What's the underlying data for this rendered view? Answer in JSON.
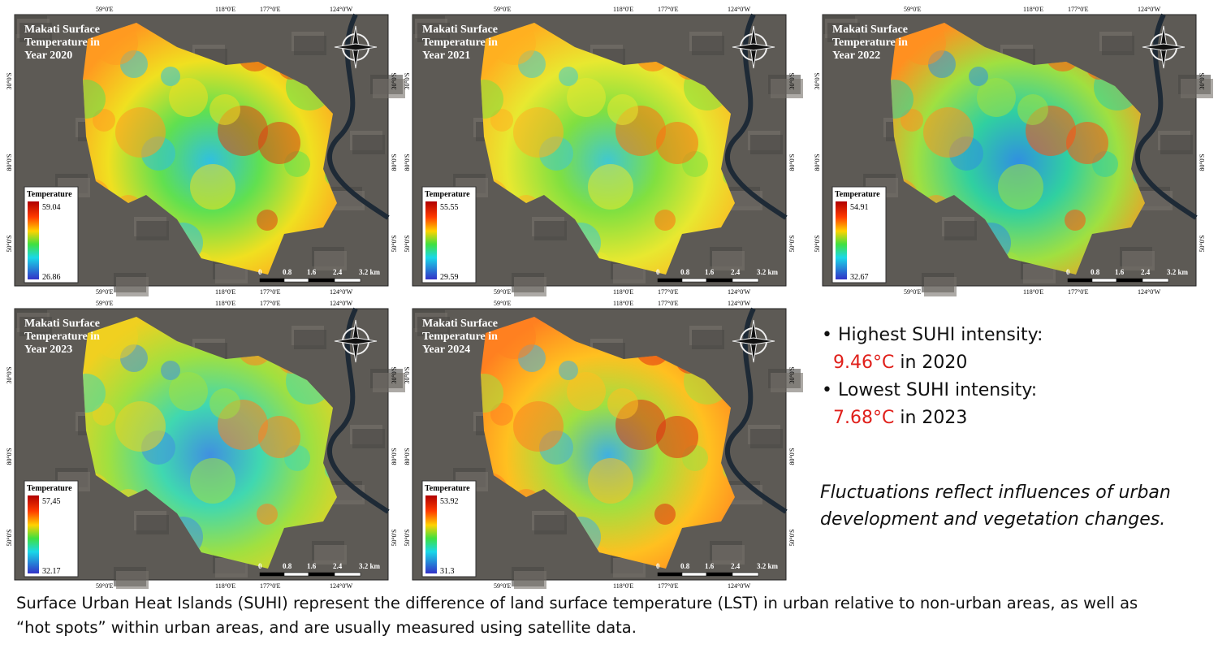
{
  "frame": {
    "top_labels": [
      "59°0'E",
      "118°0'E",
      "177°0'E",
      "124°0'W"
    ],
    "side_labels": [
      "30°0'S",
      "80°0'S",
      "50°0'S"
    ],
    "scale_labels": [
      "0",
      "0.8",
      "1.6",
      "2.4",
      "3.2 km"
    ],
    "legend_title": "Temperature"
  },
  "maps": [
    {
      "title_lines": [
        "Makati Surface",
        "Temperature in",
        "Year 2020"
      ],
      "max": "59.04",
      "min": "26.86"
    },
    {
      "title_lines": [
        "Makati Surface",
        "Temperature in",
        "Year 2021"
      ],
      "max": "55.55",
      "min": "29.59"
    },
    {
      "title_lines": [
        "Makati Surface",
        "Temperature in",
        "Year 2022"
      ],
      "max": "54.91",
      "min": "32.67"
    },
    {
      "title_lines": [
        "Makati Surface",
        "Temperature in",
        "Year 2023"
      ],
      "max": "57,45",
      "min": "32.17"
    },
    {
      "title_lines": [
        "Makati Surface",
        "Temperature in",
        "Year 2024"
      ],
      "max": "53.92",
      "min": "31.3"
    }
  ],
  "notes": {
    "bullets": [
      {
        "label": "Highest SUHI intensity:",
        "value": "9.46°C",
        "year": "in 2020"
      },
      {
        "label": "Lowest SUHI intensity:",
        "value": "7.68°C",
        "year": "in 2023"
      }
    ],
    "remark": "Fluctuations reflect influences of urban development and vegetation changes."
  },
  "caption": [
    "Surface Urban Heat Islands (SUHI) represent the difference of land surface temperature (LST) in urban relative to non-urban areas, as well as",
    "“hot spots” within urban areas, and are usually measured using satellite data."
  ]
}
